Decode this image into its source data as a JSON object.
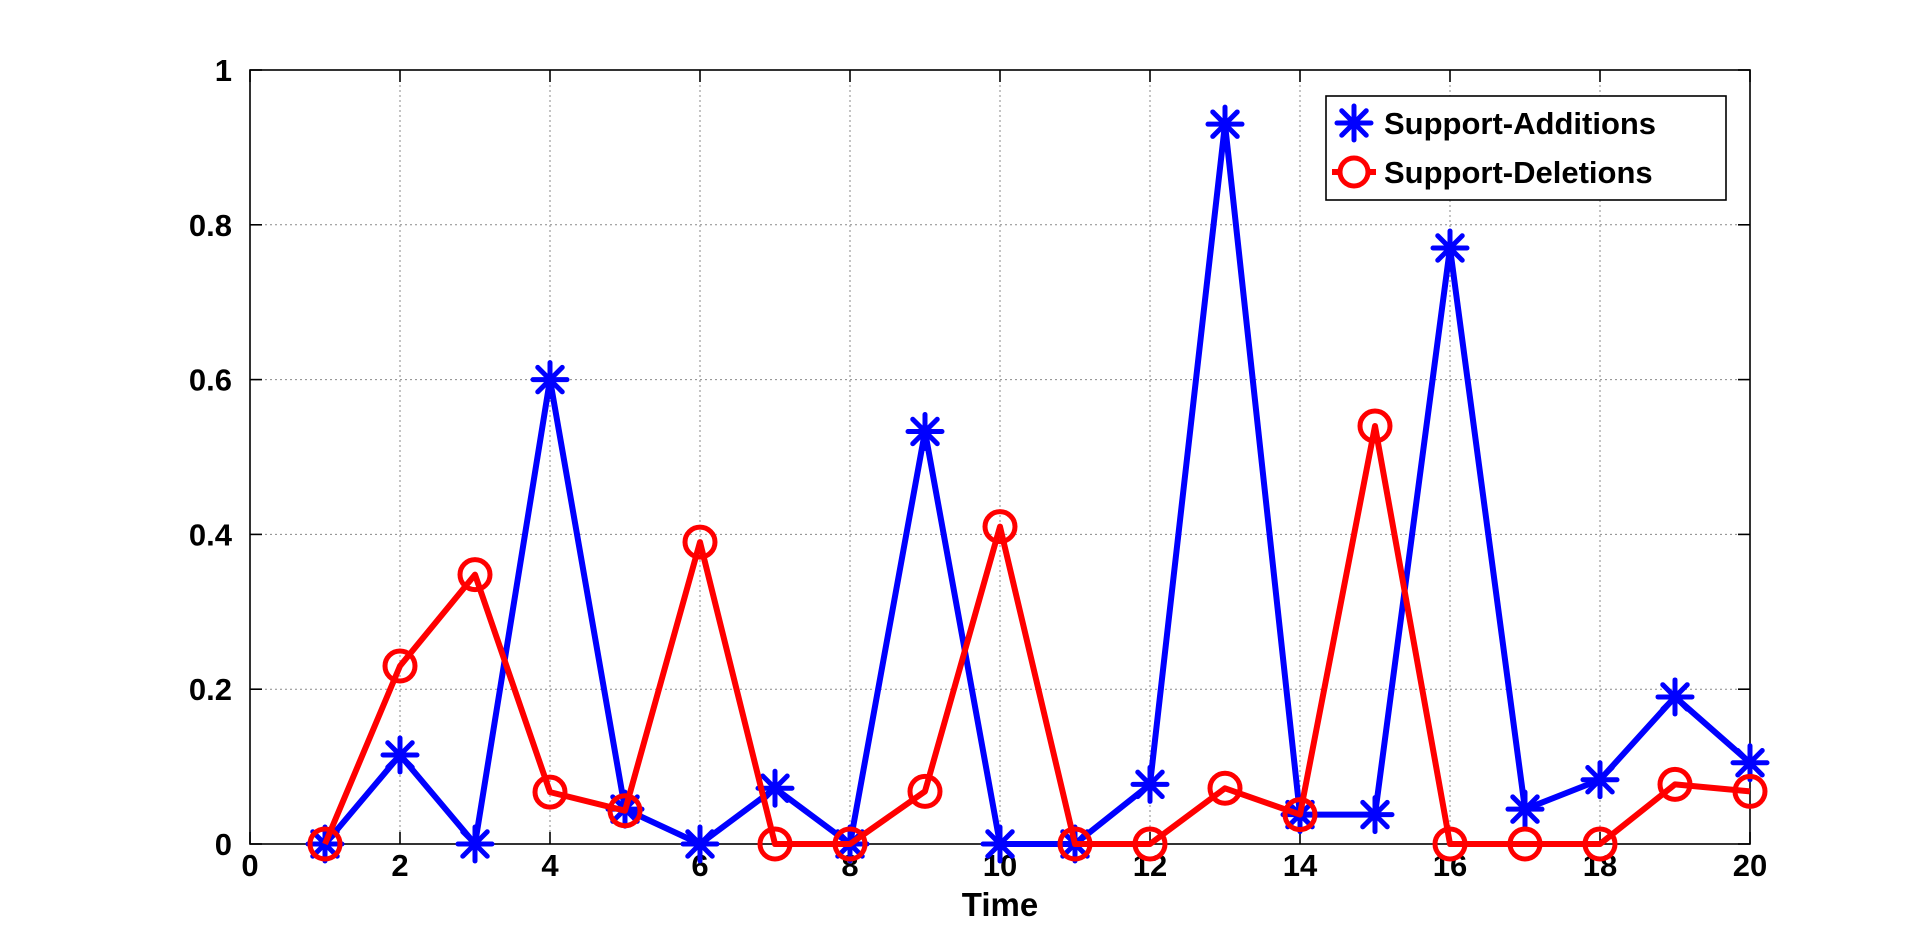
{
  "chart_data": {
    "type": "line",
    "title": "",
    "xlabel": "Time",
    "ylabel": "",
    "xlim": [
      0,
      20
    ],
    "ylim": [
      0,
      1
    ],
    "grid": true,
    "legend_position": "top-right",
    "x_ticks": [
      0,
      2,
      4,
      6,
      8,
      10,
      12,
      14,
      16,
      18,
      20
    ],
    "x_tick_labels": [
      "0",
      "2",
      "4",
      "6",
      "8",
      "10",
      "12",
      "14",
      "16",
      "18",
      "20"
    ],
    "y_ticks": [
      0,
      0.2,
      0.4,
      0.6,
      0.8,
      1
    ],
    "y_tick_labels": [
      "0",
      "0.2",
      "0.4",
      "0.6",
      "0.8",
      "1"
    ],
    "x": [
      1,
      2,
      3,
      4,
      5,
      6,
      7,
      8,
      9,
      10,
      11,
      12,
      13,
      14,
      15,
      16,
      17,
      18,
      19,
      20
    ],
    "series": [
      {
        "name": "Support-Additions",
        "color": "#0000ff",
        "marker": "asterisk",
        "values": [
          0,
          0.115,
          0,
          0.6,
          0.045,
          0,
          0.072,
          0,
          0.533,
          0,
          0,
          0.077,
          0.93,
          0.038,
          0.038,
          0.77,
          0.045,
          0.083,
          0.19,
          0.105
        ]
      },
      {
        "name": "Support-Deletions",
        "color": "#ff0000",
        "marker": "circle",
        "values": [
          0,
          0.23,
          0.348,
          0.067,
          0.043,
          0.39,
          0,
          0,
          0.068,
          0.41,
          0,
          0,
          0.072,
          0.038,
          0.54,
          0,
          0,
          0,
          0.077,
          0.068
        ]
      }
    ]
  }
}
